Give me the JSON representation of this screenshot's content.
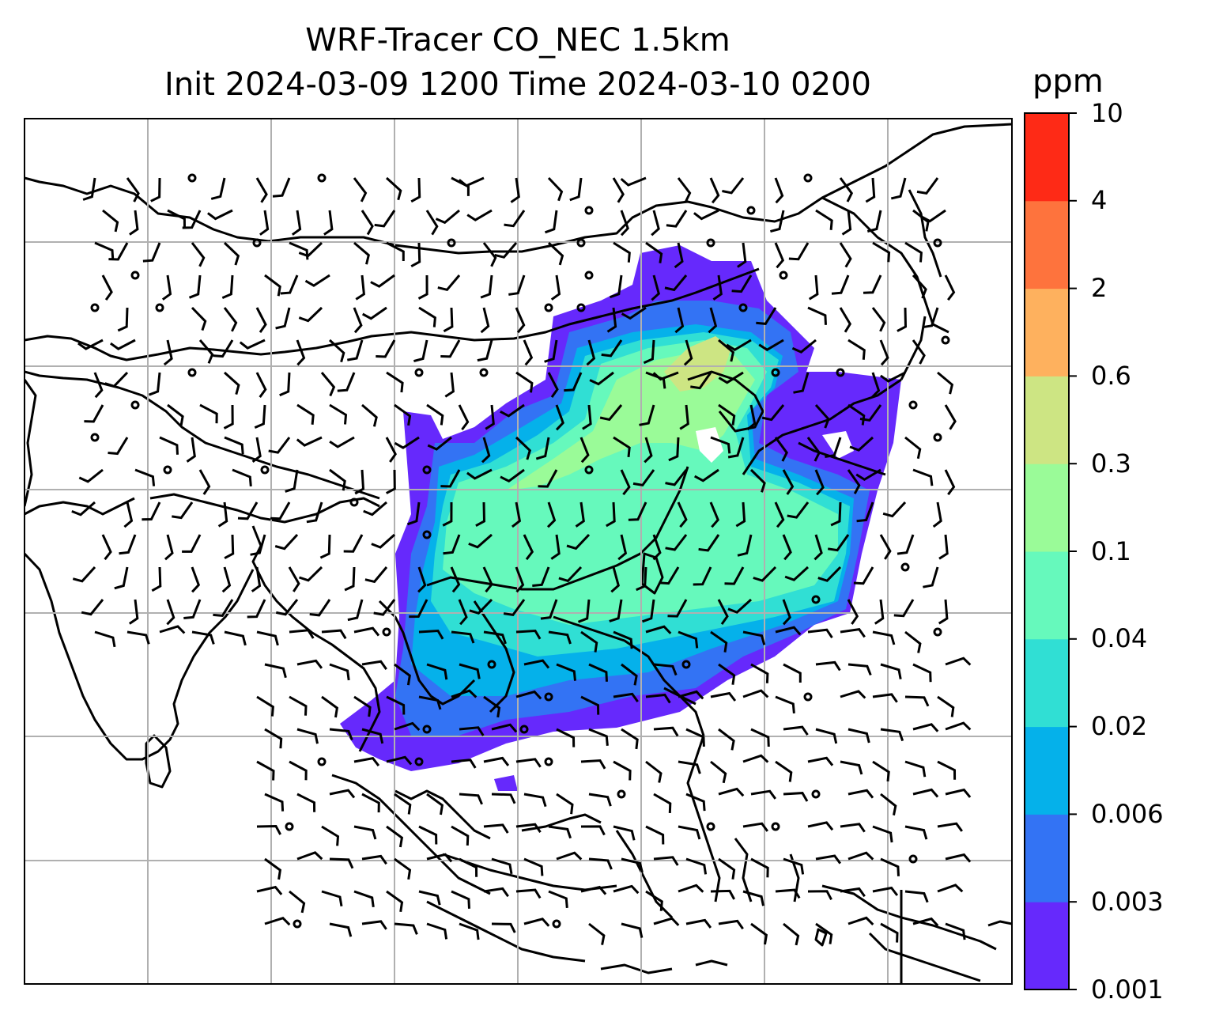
{
  "title": {
    "line1": "WRF-Tracer CO_NEC 1.5km",
    "line2": "Init 2024-03-09 1200 Time 2024-03-10 0200"
  },
  "colorbar": {
    "unit": "ppm",
    "ticks": [
      "0.001",
      "0.003",
      "0.006",
      "0.02",
      "0.04",
      "0.1",
      "0.3",
      "0.6",
      "2",
      "4",
      "10"
    ],
    "colors": [
      "#6629fc",
      "#3373f4",
      "#05b1ea",
      "#30dfd4",
      "#66f9bc",
      "#9afb98",
      "#cde583",
      "#feb15e",
      "#fe733d",
      "#fe2a16"
    ]
  },
  "map": {
    "plume_levels": [
      "0.001",
      "0.003",
      "0.006",
      "0.02",
      "0.04",
      "0.1",
      "0.3",
      "0.6"
    ],
    "background": "#ffffff",
    "gridline_color": "#b0b0b0",
    "coastline_color": "#000000",
    "wind_barb_color": "#000000"
  }
}
